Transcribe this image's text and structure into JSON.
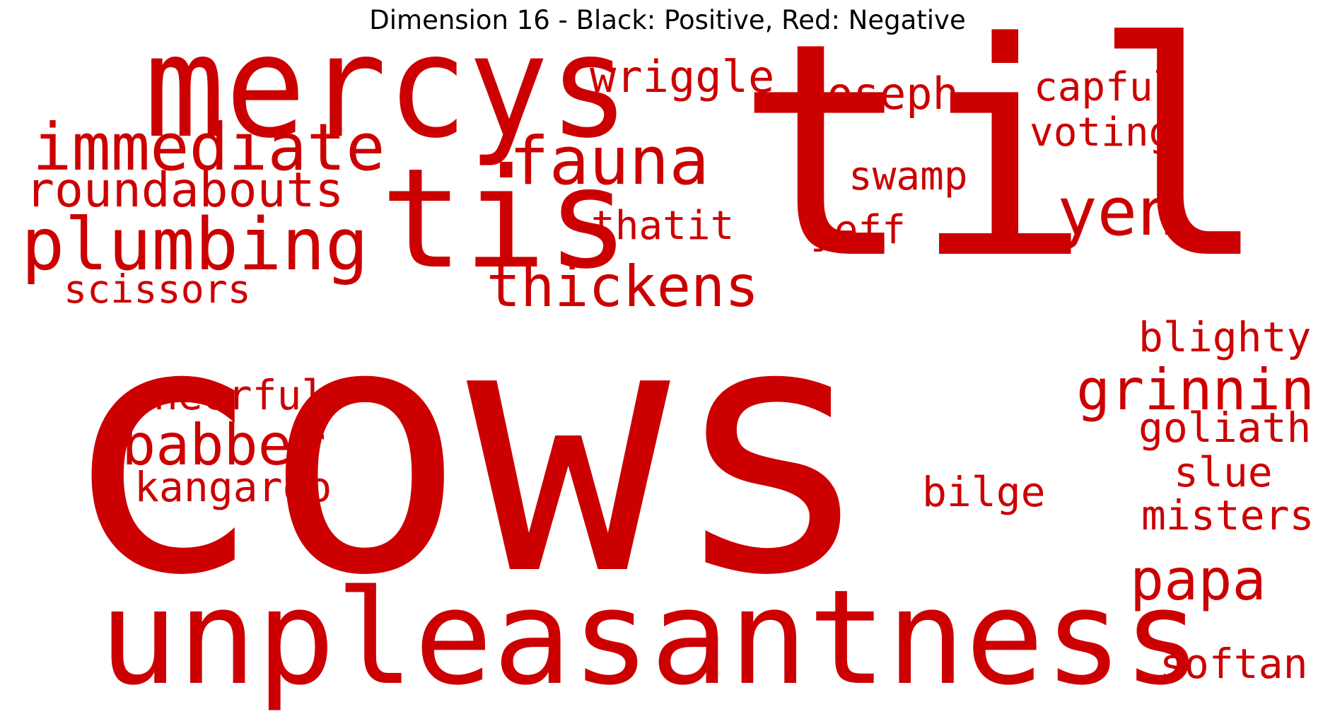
{
  "title": "Dimension 16 - Black: Positive, Red: Negative",
  "colors": {
    "positive": "#000000",
    "negative": "#cc0000",
    "background": "#ffffff"
  },
  "words": [
    {
      "text": "cows",
      "sign": "negative"
    },
    {
      "text": "til",
      "sign": "negative"
    },
    {
      "text": "unpleasantness",
      "sign": "negative"
    },
    {
      "text": "mercys",
      "sign": "negative"
    },
    {
      "text": "tis",
      "sign": "negative"
    },
    {
      "text": "immediate",
      "sign": "negative"
    },
    {
      "text": "plumbing",
      "sign": "negative"
    },
    {
      "text": "fauna",
      "sign": "negative"
    },
    {
      "text": "yen",
      "sign": "negative"
    },
    {
      "text": "thickens",
      "sign": "negative"
    },
    {
      "text": "grinnin",
      "sign": "negative"
    },
    {
      "text": "babber",
      "sign": "negative"
    },
    {
      "text": "papa",
      "sign": "negative"
    },
    {
      "text": "roundabouts",
      "sign": "negative"
    },
    {
      "text": "wriggle",
      "sign": "negative"
    },
    {
      "text": "joseph",
      "sign": "negative"
    },
    {
      "text": "capful",
      "sign": "negative"
    },
    {
      "text": "voting",
      "sign": "negative"
    },
    {
      "text": "swamp",
      "sign": "negative"
    },
    {
      "text": "thatit",
      "sign": "negative"
    },
    {
      "text": "jeff",
      "sign": "negative"
    },
    {
      "text": "scissors",
      "sign": "negative"
    },
    {
      "text": "blighty",
      "sign": "negative"
    },
    {
      "text": "cheerful",
      "sign": "negative"
    },
    {
      "text": "goliath",
      "sign": "negative"
    },
    {
      "text": "kangaroo",
      "sign": "negative"
    },
    {
      "text": "slue",
      "sign": "negative"
    },
    {
      "text": "bilge",
      "sign": "negative"
    },
    {
      "text": "misters",
      "sign": "negative"
    },
    {
      "text": "softan",
      "sign": "negative"
    }
  ]
}
